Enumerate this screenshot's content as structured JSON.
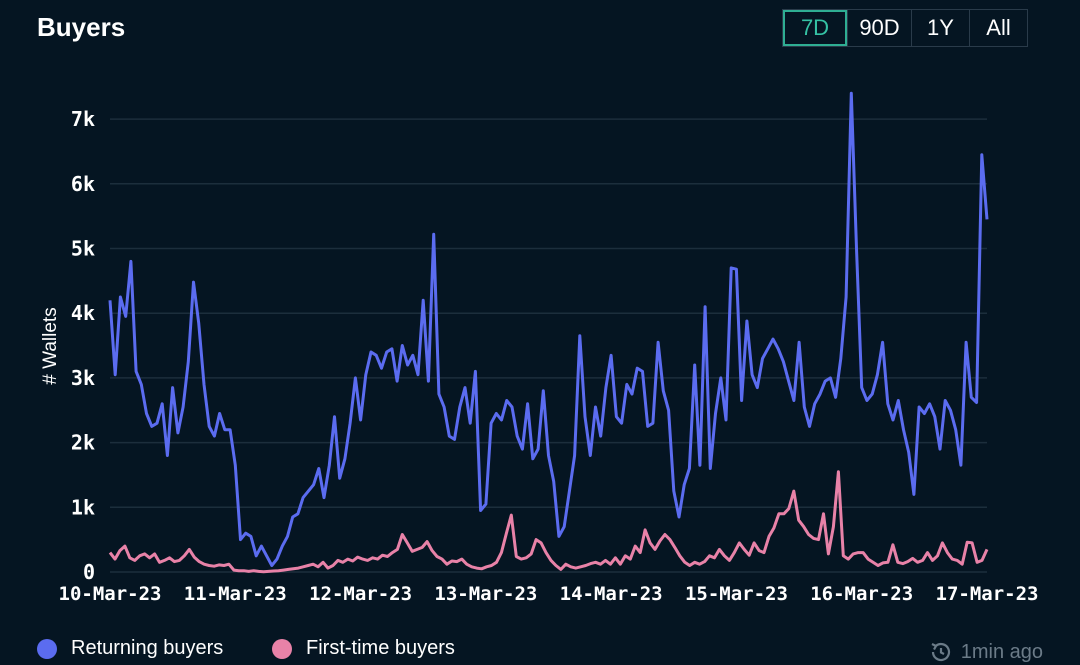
{
  "header": {
    "title": "Buyers"
  },
  "range_buttons": [
    {
      "label": "7D",
      "active": true
    },
    {
      "label": "90D",
      "active": false
    },
    {
      "label": "1Y",
      "active": false
    },
    {
      "label": "All",
      "active": false
    }
  ],
  "footer": {
    "updated_text": "1min ago",
    "refresh_icon": "refresh-clock-icon"
  },
  "colors": {
    "background": "#051522",
    "returning": "#5b6cf0",
    "first_time": "#e882a8",
    "grid": "#1c2e3c",
    "active_button": "#35c2a4"
  },
  "chart_data": {
    "type": "line",
    "title": "Buyers",
    "ylabel": "# Wallets",
    "xlabel": "",
    "ylim": [
      0,
      7500
    ],
    "yticks": [
      0,
      1000,
      2000,
      3000,
      4000,
      5000,
      6000,
      7000
    ],
    "ytick_labels": [
      "0",
      "1k",
      "2k",
      "3k",
      "4k",
      "5k",
      "6k",
      "7k"
    ],
    "x_start": "10-Mar-23",
    "x_end": "17-Mar-23",
    "xtick_labels": [
      "10-Mar-23",
      "11-Mar-23",
      "12-Mar-23",
      "13-Mar-23",
      "14-Mar-23",
      "15-Mar-23",
      "16-Mar-23",
      "17-Mar-23"
    ],
    "grid": true,
    "legend_position": "bottom",
    "series": [
      {
        "name": "Returning buyers",
        "color": "#5b6cf0",
        "values": [
          4200,
          3050,
          4250,
          3950,
          4800,
          3100,
          2900,
          2450,
          2250,
          2300,
          2600,
          1800,
          2850,
          2150,
          2550,
          3250,
          4480,
          3850,
          2900,
          2250,
          2100,
          2450,
          2200,
          2200,
          1650,
          500,
          600,
          550,
          250,
          400,
          250,
          100,
          200,
          400,
          550,
          850,
          900,
          1150,
          1250,
          1350,
          1600,
          1150,
          1650,
          2400,
          1450,
          1750,
          2300,
          3000,
          2350,
          3050,
          3400,
          3350,
          3150,
          3400,
          3450,
          2950,
          3500,
          3200,
          3350,
          3050,
          4200,
          2950,
          5220,
          2750,
          2550,
          2100,
          2050,
          2550,
          2850,
          2300,
          3100,
          950,
          1050,
          2300,
          2450,
          2350,
          2650,
          2550,
          2100,
          1900,
          2600,
          1750,
          1900,
          2800,
          1800,
          1400,
          550,
          700,
          1250,
          1800,
          3650,
          2400,
          1800,
          2550,
          2100,
          2850,
          3350,
          2400,
          2300,
          2900,
          2750,
          3150,
          3100,
          2250,
          2300,
          3550,
          2800,
          2500,
          1250,
          850,
          1350,
          1600,
          3200,
          1650,
          4100,
          1600,
          2450,
          3000,
          2350,
          4700,
          4680,
          2650,
          3880,
          3050,
          2850,
          3300,
          3450,
          3600,
          3450,
          3250,
          2950,
          2650,
          3550,
          2550,
          2250,
          2600,
          2750,
          2950,
          3000,
          2700,
          3300,
          4250,
          7400,
          5000,
          2850,
          2650,
          2750,
          3050,
          3550,
          2600,
          2350,
          2650,
          2200,
          1850,
          1200,
          2550,
          2450,
          2600,
          2400,
          1900,
          2650,
          2500,
          2200,
          1650,
          3550,
          2700,
          2620,
          6450,
          5450
        ]
      },
      {
        "name": "First-time buyers",
        "color": "#e882a8",
        "values": [
          300,
          200,
          330,
          400,
          220,
          180,
          250,
          280,
          220,
          280,
          150,
          180,
          220,
          160,
          180,
          250,
          350,
          230,
          160,
          120,
          100,
          90,
          110,
          100,
          120,
          30,
          20,
          20,
          10,
          20,
          10,
          5,
          10,
          15,
          20,
          30,
          40,
          50,
          60,
          80,
          100,
          120,
          80,
          150,
          60,
          100,
          180,
          150,
          200,
          170,
          230,
          200,
          180,
          220,
          200,
          260,
          240,
          300,
          350,
          580,
          450,
          320,
          350,
          380,
          470,
          330,
          240,
          200,
          120,
          170,
          160,
          200,
          120,
          80,
          60,
          50,
          80,
          100,
          150,
          300,
          600,
          880,
          240,
          200,
          220,
          280,
          500,
          450,
          300,
          180,
          100,
          40,
          120,
          80,
          60,
          80,
          100,
          130,
          150,
          120,
          180,
          120,
          220,
          120,
          250,
          200,
          400,
          300,
          650,
          450,
          350,
          480,
          580,
          500,
          380,
          250,
          150,
          100,
          150,
          120,
          160,
          250,
          220,
          350,
          250,
          180,
          300,
          450,
          350,
          260,
          450,
          330,
          300,
          550,
          680,
          900,
          900,
          980,
          1250,
          800,
          700,
          580,
          520,
          500,
          900,
          280,
          700,
          1550,
          250,
          200,
          280,
          300,
          300,
          200,
          150,
          100,
          140,
          150,
          420,
          150,
          130,
          160,
          210,
          150,
          180,
          300,
          180,
          250,
          450,
          300,
          200,
          180,
          120,
          460,
          450,
          150,
          180,
          350
        ]
      }
    ]
  }
}
